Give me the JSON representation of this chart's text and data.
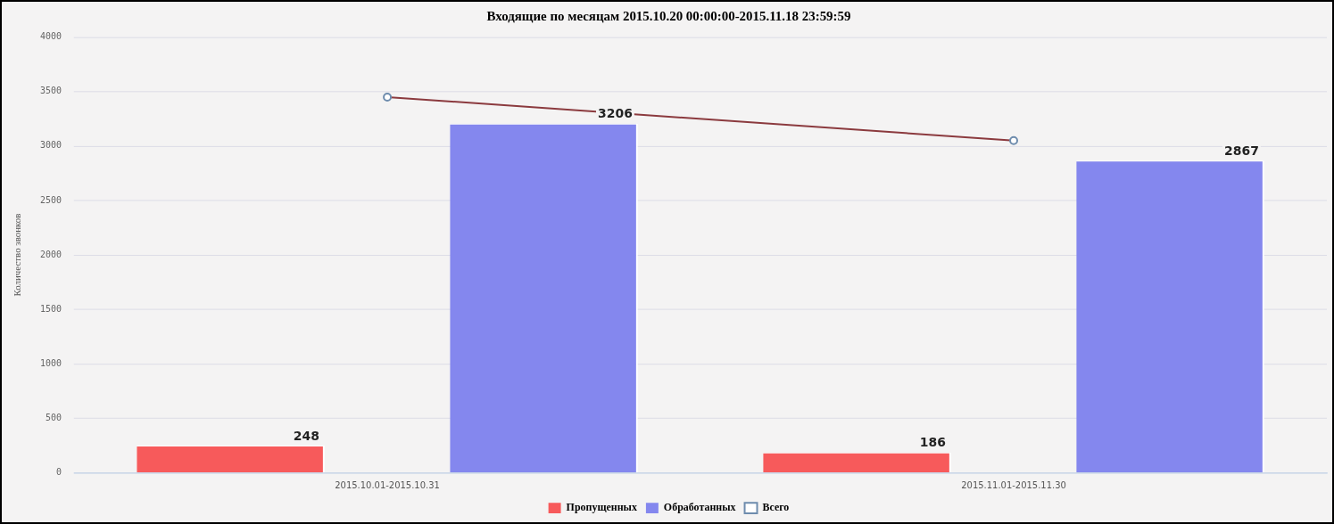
{
  "chart_data": {
    "type": "bar",
    "title": "Входящие по месяцам 2015.10.20 00:00:00-2015.11.18 23:59:59",
    "ylabel": "Количество звонков",
    "categories": [
      "2015.10.01-2015.10.31",
      "2015.11.01-2015.11.30"
    ],
    "series": [
      {
        "name": "Пропущенных",
        "color": "#f75a5b",
        "values": [
          248,
          186
        ],
        "value_labels": [
          "248",
          "186"
        ]
      },
      {
        "name": "Обработанных",
        "color": "#8487ee",
        "values": [
          3206,
          2867
        ],
        "value_labels": [
          "3206",
          "2867"
        ]
      },
      {
        "name": "Всего",
        "type": "line",
        "color": "#8b3a3e",
        "values": [
          3450,
          3050
        ],
        "marker": "circle"
      }
    ],
    "ylim": [
      0,
      4000
    ],
    "yticks": [
      0,
      500,
      1000,
      1500,
      2000,
      2500,
      3000,
      3500,
      4000
    ],
    "grid": "y",
    "legend": "bottom"
  }
}
